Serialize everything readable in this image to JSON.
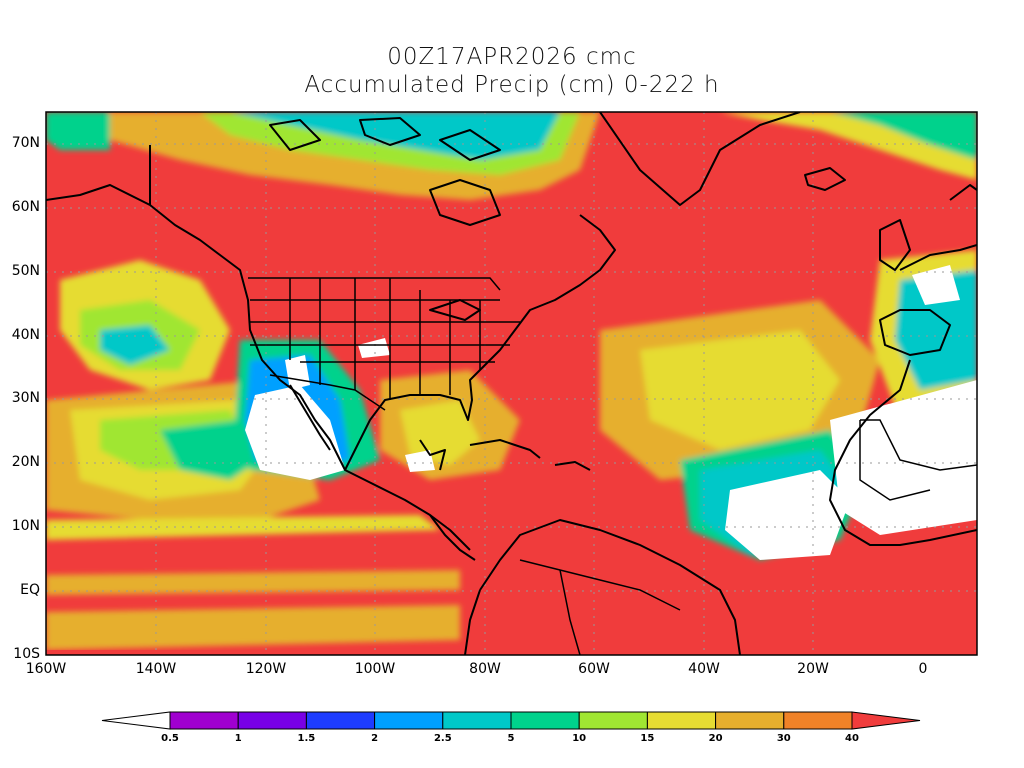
{
  "title_line1": "00Z17APR2026 cmc",
  "title_line2": "Accumulated Precip (cm) 0-222 h",
  "lat_labels": [
    "70N",
    "60N",
    "50N",
    "40N",
    "30N",
    "20N",
    "10N",
    "EQ",
    "10S"
  ],
  "lon_labels": [
    "160W",
    "140W",
    "120W",
    "100W",
    "80W",
    "60W",
    "40W",
    "20W",
    "0"
  ],
  "colorbar": {
    "labels": [
      "0.5",
      "1",
      "1.5",
      "2",
      "2.5",
      "5",
      "10",
      "15",
      "20",
      "30",
      "40"
    ],
    "colors": [
      "#ffffff",
      "#a000d0",
      "#7800e6",
      "#1e3cff",
      "#00a0ff",
      "#00c8c8",
      "#00d28c",
      "#a0e632",
      "#e6dc32",
      "#e6af2d",
      "#f08228",
      "#f03c3c"
    ]
  },
  "extent": {
    "lon_min": -160,
    "lon_max": 10,
    "lat_min": -10,
    "lat_max": 75
  }
}
